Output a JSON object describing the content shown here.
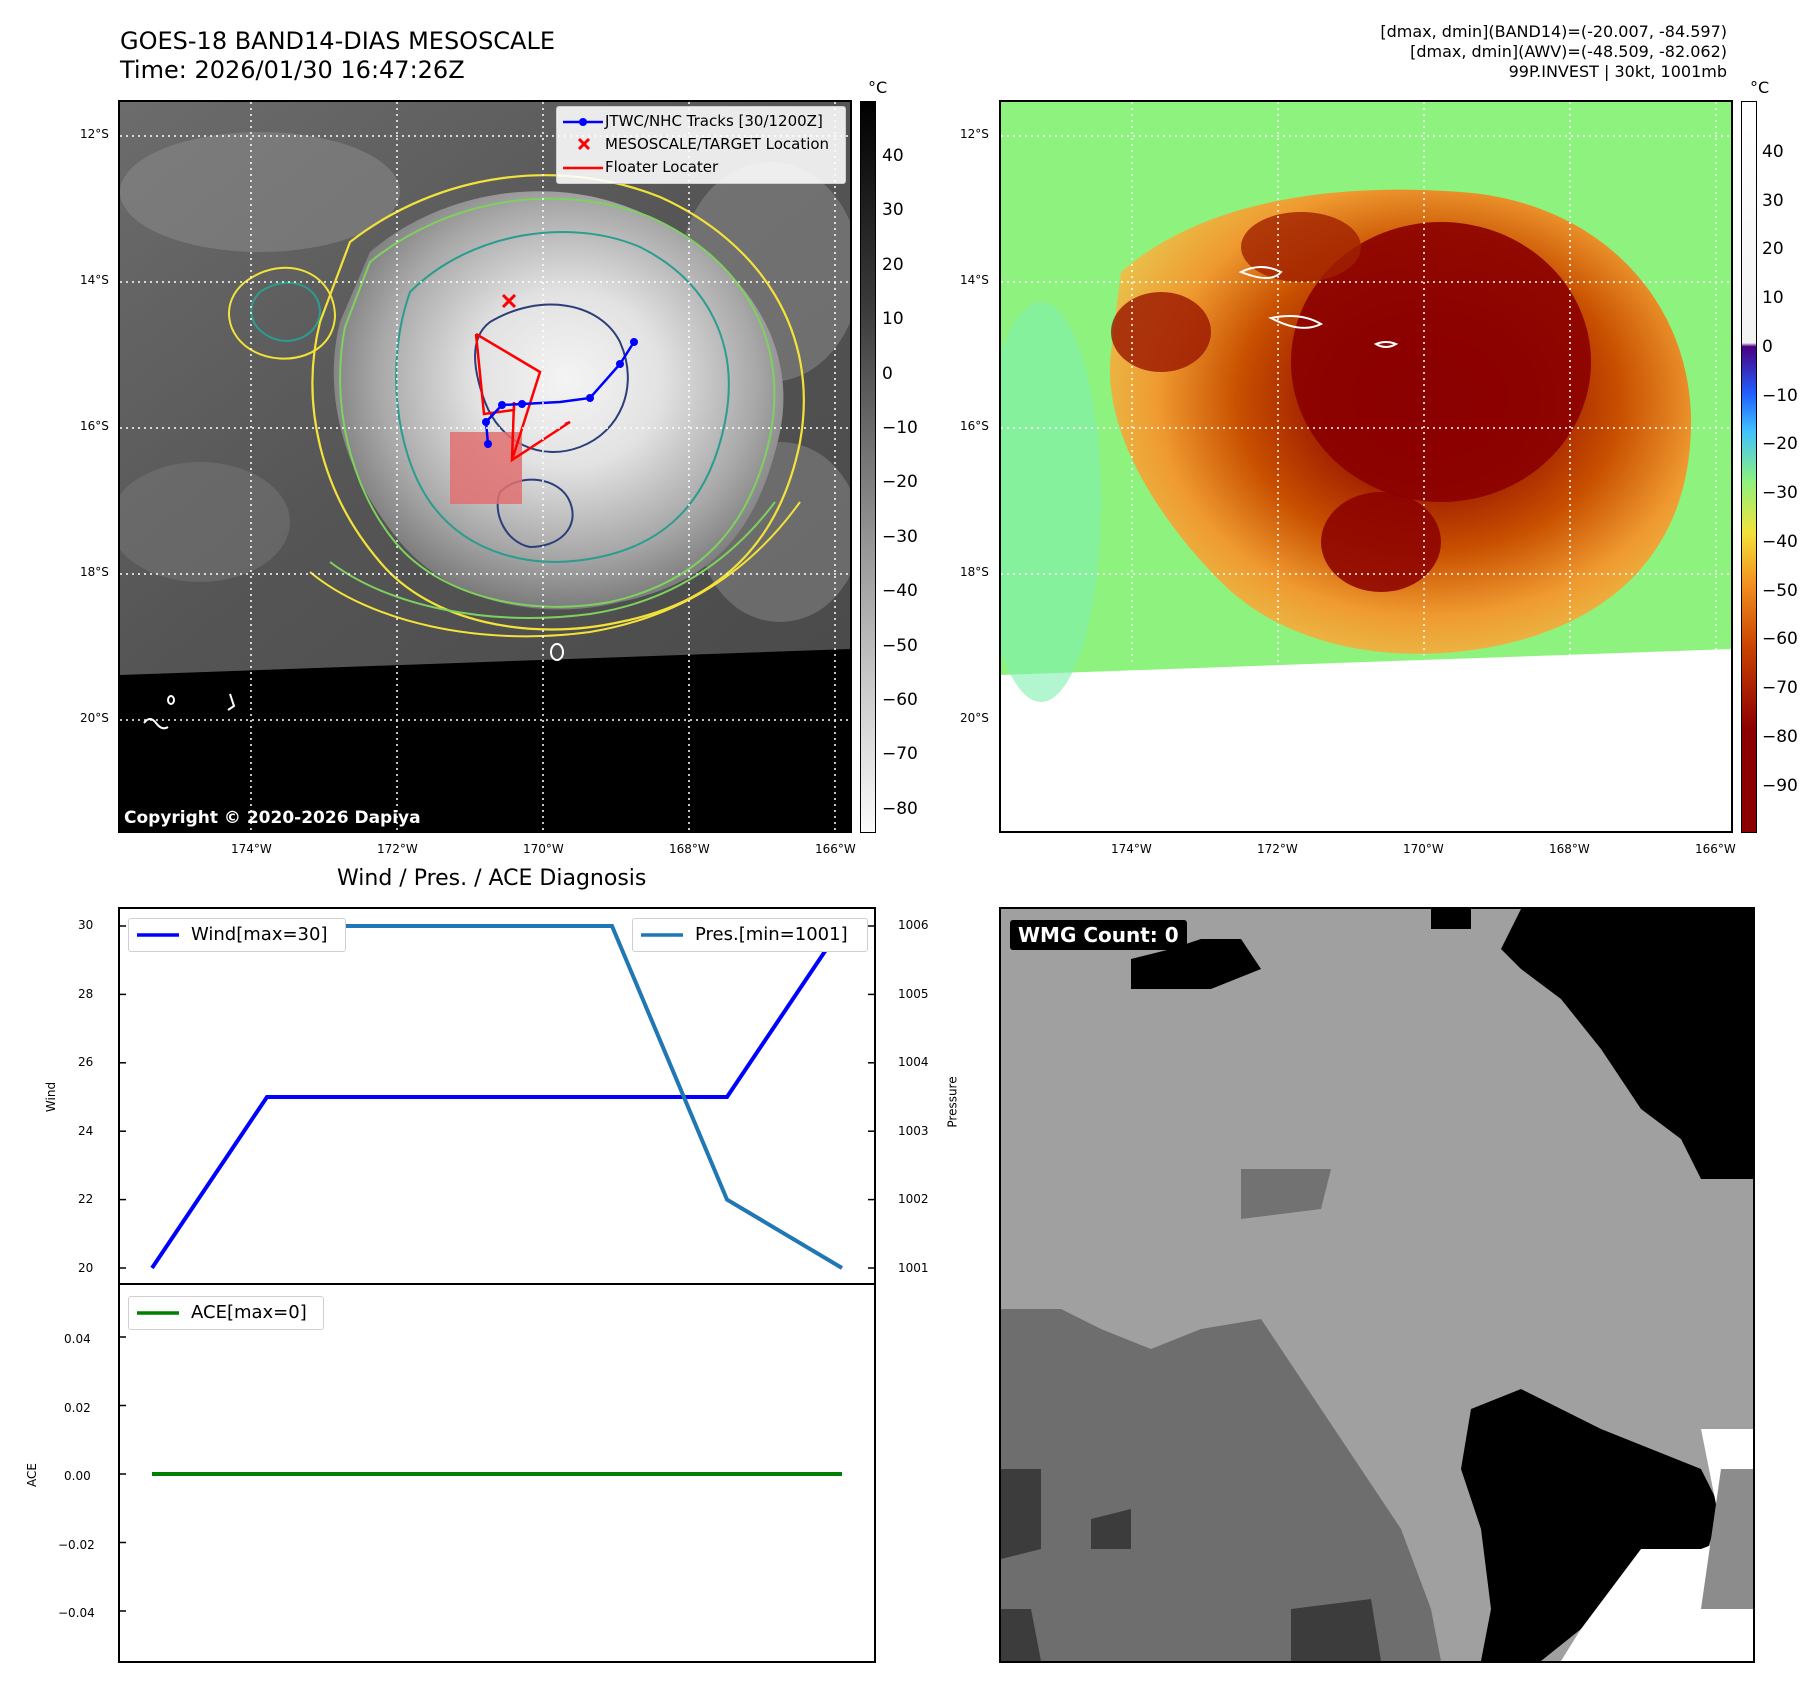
{
  "header": {
    "title_line1": "GOES-18 BAND14-DIAS MESOSCALE",
    "title_line2": "Time: 2026/01/30 16:47:26Z",
    "info_line1": "[dmax, dmin](BAND14)=(-20.007, -84.597)",
    "info_line2": "[dmax, dmin](AWV)=(-48.509, -82.062)",
    "info_line3": "99P.INVEST | 30kt, 1001mb"
  },
  "map_ir": {
    "lat_labels": [
      "12°S",
      "14°S",
      "16°S",
      "18°S",
      "20°S"
    ],
    "lon_labels": [
      "174°W",
      "172°W",
      "170°W",
      "168°W",
      "166°W"
    ],
    "colorbar_unit": "°C",
    "colorbar_ticks": [
      "40",
      "30",
      "20",
      "10",
      "0",
      "−10",
      "−20",
      "−30",
      "−40",
      "−50",
      "−60",
      "−70",
      "−80"
    ],
    "legend": {
      "track": "JTWC/NHC Tracks [30/1200Z]",
      "target": "MESOSCALE/TARGET Location",
      "floater": "Floater Locater"
    },
    "copyright": "Copyright © 2020-2026 Dapiya",
    "colors": {
      "track": "#0000ff",
      "target": "#ff0000",
      "floater": "#ff0000",
      "contour_yellow": "#f2e23a",
      "contour_green": "#7fd15f",
      "contour_teal": "#2a9d8f",
      "contour_navy": "#2c3e7a"
    }
  },
  "map_awv": {
    "lat_labels": [
      "12°S",
      "14°S",
      "16°S",
      "18°S",
      "20°S"
    ],
    "lon_labels": [
      "174°W",
      "172°W",
      "170°W",
      "168°W",
      "166°W"
    ],
    "colorbar_unit": "°C",
    "colorbar_ticks": [
      "40",
      "30",
      "20",
      "10",
      "0",
      "−10",
      "−20",
      "−30",
      "−40",
      "−50",
      "−60",
      "−70",
      "−80",
      "−90"
    ]
  },
  "diagnosis": {
    "title": "Wind / Pres. / ACE Diagnosis",
    "wind_ylabel": "Wind",
    "pressure_ylabel": "Pressure",
    "ace_ylabel": "ACE",
    "wind_legend": "Wind[max=30]",
    "pressure_legend": "Pres.[min=1001]",
    "ace_legend": "ACE[max=0]",
    "wind_ticks": [
      "30",
      "28",
      "26",
      "24",
      "22",
      "20"
    ],
    "pressure_ticks": [
      "1006",
      "1005",
      "1004",
      "1003",
      "1002",
      "1001"
    ],
    "ace_ticks": [
      "0.04",
      "0.02",
      "0.00",
      "−0.02",
      "−0.04"
    ],
    "colors": {
      "wind": "#0000ff",
      "pressure": "#1f77b4",
      "ace": "#008000"
    }
  },
  "wmg": {
    "label": "WMG Count: 0"
  },
  "chart_data": [
    {
      "type": "line",
      "title": "Wind / Pres. / ACE Diagnosis",
      "x": [
        0,
        1,
        2,
        3,
        4,
        5,
        6
      ],
      "series": [
        {
          "name": "Wind[max=30]",
          "axis": "left",
          "values": [
            20,
            25,
            25,
            25,
            25,
            25,
            30
          ]
        },
        {
          "name": "Pres.[min=1001]",
          "axis": "right",
          "values": [
            1006,
            1006,
            1006,
            1006,
            1006,
            1002,
            1001
          ]
        }
      ],
      "ylabel": "Wind",
      "ylim": [
        19.7,
        30.3
      ],
      "y2label": "Pressure",
      "y2lim": [
        1000.95,
        1006.05
      ]
    },
    {
      "type": "line",
      "x": [
        0,
        1,
        2,
        3,
        4,
        5,
        6
      ],
      "series": [
        {
          "name": "ACE[max=0]",
          "values": [
            0,
            0,
            0,
            0,
            0,
            0,
            0
          ]
        }
      ],
      "ylabel": "ACE",
      "ylim": [
        -0.055,
        0.055
      ]
    }
  ]
}
